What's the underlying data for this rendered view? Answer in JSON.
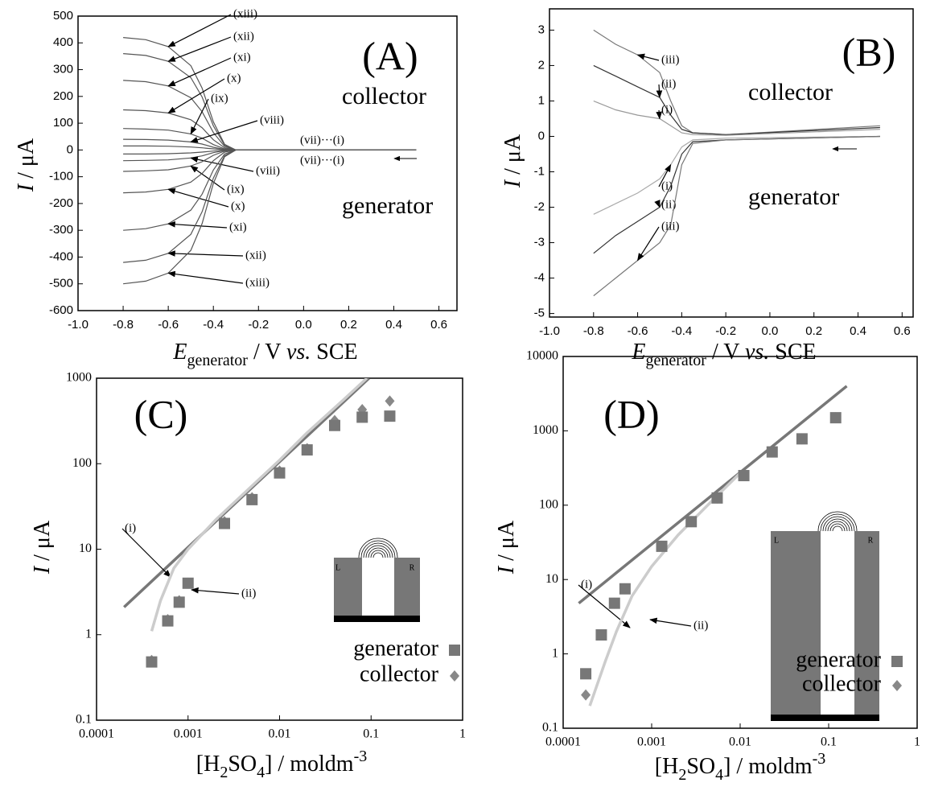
{
  "chart_data": [
    {
      "type": "line",
      "letter": "(A)",
      "xlim": [
        -1.0,
        0.68
      ],
      "ylim": [
        -600,
        500
      ],
      "xticks": [
        {
          "value": -1,
          "label": "-1.0"
        },
        -0.8,
        -0.6,
        -0.4,
        -0.2,
        {
          "value": 0,
          "label": "0.0"
        },
        0.2,
        0.4,
        0.6
      ],
      "yticks": [
        -600,
        -500,
        -400,
        -300,
        -200,
        -100,
        0,
        100,
        200,
        300,
        400,
        500
      ],
      "x_label": [
        "E",
        "generator",
        " / V ",
        "vs.",
        " SCE"
      ],
      "y_label": [
        "I",
        " / μA"
      ],
      "annotations": [
        "collector",
        "generator"
      ],
      "x": [
        0.5,
        -0.3,
        -0.35,
        -0.4,
        -0.45,
        -0.5,
        -0.6,
        -0.7,
        -0.8
      ],
      "series": [
        {
          "name": "(xiii)",
          "color": "#555",
          "values": [
            0,
            0,
            21,
            105,
            231,
            315,
            386,
            412,
            420
          ]
        },
        {
          "name": "(xii)",
          "color": "#555",
          "values": [
            0,
            0,
            18,
            90,
            198,
            270,
            331,
            353,
            360
          ]
        },
        {
          "name": "(xi)",
          "color": "#555",
          "values": [
            0,
            0,
            13,
            65,
            143,
            195,
            239,
            255,
            260
          ]
        },
        {
          "name": "(x)",
          "color": "#555",
          "values": [
            0,
            0,
            8,
            38,
            83,
            113,
            138,
            147,
            150
          ]
        },
        {
          "name": "(ix)",
          "color": "#555",
          "values": [
            0,
            0,
            4,
            20,
            44,
            60,
            74,
            78,
            80
          ]
        },
        {
          "name": "(viii)",
          "color": "#555",
          "values": [
            0,
            0,
            2,
            10,
            22,
            30,
            37,
            39,
            40
          ]
        },
        {
          "name": "(vii)···(i)",
          "color": "#555",
          "values": [
            0,
            0,
            1,
            4,
            8,
            11,
            14,
            15,
            15
          ]
        },
        {
          "name": "(vii)···(i)",
          "color": "#555",
          "values": [
            0,
            0,
            -1,
            -4,
            -8,
            -11,
            -14,
            -15,
            -15
          ]
        },
        {
          "name": "(viii)",
          "color": "#555",
          "values": [
            0,
            0,
            -2,
            -10,
            -22,
            -30,
            -37,
            -39,
            -40
          ]
        },
        {
          "name": "(ix)",
          "color": "#555",
          "values": [
            0,
            0,
            -4,
            -20,
            -44,
            -60,
            -74,
            -78,
            -80
          ]
        },
        {
          "name": "(x)",
          "color": "#555",
          "values": [
            0,
            0,
            -8,
            -40,
            -88,
            -120,
            -147,
            -157,
            -160
          ]
        },
        {
          "name": "(xi)",
          "color": "#555",
          "values": [
            0,
            0,
            -15,
            -75,
            -165,
            -225,
            -276,
            -294,
            -300
          ]
        },
        {
          "name": "(xii)",
          "color": "#555",
          "values": [
            0,
            0,
            -21,
            -105,
            -231,
            -315,
            -386,
            -412,
            -420
          ]
        },
        {
          "name": "(xiii)",
          "color": "#555",
          "values": [
            0,
            0,
            -25,
            -125,
            -275,
            -375,
            -460,
            -490,
            -500
          ]
        }
      ]
    },
    {
      "type": "line",
      "letter": "(B)",
      "xlim": [
        -1.0,
        0.65
      ],
      "ylim": [
        -5.1,
        3.6
      ],
      "xticks": [
        {
          "value": -1,
          "label": "-1.0"
        },
        -0.8,
        -0.6,
        -0.4,
        -0.2,
        {
          "value": 0,
          "label": "0.0"
        },
        0.2,
        0.4,
        0.6
      ],
      "yticks": [
        -5,
        -4,
        -3,
        -2,
        -1,
        0,
        1,
        2,
        3
      ],
      "x_label": [
        "E",
        "generator",
        " / V ",
        "vs.",
        " SCE"
      ],
      "y_label": [
        "I",
        " / μA"
      ],
      "annotations": [
        "collector",
        "generator"
      ],
      "x": [
        0.5,
        -0.2,
        -0.35,
        -0.4,
        -0.45,
        -0.5,
        -0.6,
        -0.7,
        -0.8
      ],
      "series": [
        {
          "name": "(iii)",
          "color": "#777",
          "values": [
            0.3,
            0.05,
            0.1,
            0.3,
            1.0,
            1.8,
            2.3,
            2.6,
            3.0
          ]
        },
        {
          "name": "(ii)",
          "color": "#333",
          "values": [
            0.25,
            0.05,
            0.1,
            0.2,
            0.6,
            1.1,
            1.4,
            1.7,
            2.0
          ]
        },
        {
          "name": "(i)",
          "color": "#999",
          "values": [
            0.2,
            0.03,
            0.05,
            0.1,
            0.3,
            0.5,
            0.6,
            0.75,
            1.0
          ]
        },
        {
          "name": "(i)",
          "color": "#aaa",
          "values": [
            0,
            -0.05,
            -0.1,
            -0.3,
            -0.8,
            -1.2,
            -1.6,
            -1.9,
            -2.2
          ]
        },
        {
          "name": "(ii)",
          "color": "#333",
          "values": [
            0,
            -0.1,
            -0.15,
            -0.5,
            -1.4,
            -2.0,
            -2.4,
            -2.8,
            -3.3
          ]
        },
        {
          "name": "(iii)",
          "color": "#777",
          "values": [
            0,
            -0.1,
            -0.2,
            -0.8,
            -2.5,
            -3.0,
            -3.5,
            -4.0,
            -4.5
          ]
        }
      ]
    },
    {
      "type": "scatter",
      "letter": "(C)",
      "xscale": "log",
      "yscale": "log",
      "xlim": [
        0.0001,
        1
      ],
      "ylim": [
        0.1,
        1000
      ],
      "xticks": [
        0.0001,
        0.001,
        0.01,
        0.1,
        1
      ],
      "yticks": [
        0.1,
        1,
        10,
        100,
        1000
      ],
      "x_label": [
        "[H",
        "2",
        "SO",
        "4",
        "] / moldm",
        "-3"
      ],
      "y_label": [
        "I",
        " / μA"
      ],
      "inset": [
        "L",
        "R"
      ],
      "series": [
        {
          "name": "generator",
          "marker": "square",
          "color": "#777",
          "x": [
            0.0004,
            0.0006,
            0.0008,
            0.001,
            0.0025,
            0.005,
            0.01,
            0.02,
            0.04,
            0.08,
            0.16
          ],
          "values": [
            0.48,
            1.45,
            2.4,
            4,
            20,
            38,
            78,
            145,
            280,
            350,
            360
          ]
        },
        {
          "name": "collector",
          "marker": "diamond",
          "color": "#888",
          "x": [
            0.0004,
            0.0006,
            0.0008,
            0.001,
            0.0025,
            0.005,
            0.01,
            0.02,
            0.04,
            0.08,
            0.16
          ],
          "values": [
            0.5,
            1.5,
            2.5,
            4,
            21,
            40,
            82,
            150,
            320,
            430,
            540
          ]
        },
        {
          "name": "(i)",
          "color": "#777",
          "x": [
            0.0002,
            0.095
          ],
          "values": [
            2.1,
            1000
          ]
        },
        {
          "name": "(ii)",
          "color": "#ccc",
          "x": [
            0.0004,
            0.0005,
            0.0007,
            0.001,
            0.002,
            0.005,
            0.01,
            0.02,
            0.05,
            0.09
          ],
          "values": [
            1.1,
            2.5,
            6,
            10,
            22,
            55,
            110,
            230,
            560,
            1000
          ]
        }
      ]
    },
    {
      "type": "scatter",
      "letter": "(D)",
      "xscale": "log",
      "yscale": "log",
      "xlim": [
        0.0001,
        1
      ],
      "ylim": [
        0.1,
        10000
      ],
      "xticks": [
        0.0001,
        0.001,
        0.01,
        0.1,
        1
      ],
      "yticks": [
        0.1,
        1,
        10,
        100,
        1000,
        10000
      ],
      "x_label": [
        "[H",
        "2",
        "SO",
        "4",
        "]  / moldm",
        "-3"
      ],
      "y_label": [
        "I",
        " / μA"
      ],
      "inset": [
        "L",
        "R"
      ],
      "series": [
        {
          "name": "generator",
          "marker": "square",
          "color": "#777",
          "x": [
            0.00018,
            0.00027,
            0.00038,
            0.0005,
            0.0013,
            0.0028,
            0.0055,
            0.011,
            0.023,
            0.05,
            0.12
          ],
          "values": [
            0.54,
            1.8,
            4.8,
            7.5,
            28,
            60,
            125,
            250,
            520,
            780,
            1500
          ]
        },
        {
          "name": "collector",
          "marker": "diamond",
          "color": "#888",
          "x": [
            0.00018,
            0.00027,
            0.00038,
            0.0005,
            0.0013,
            0.0028,
            0.0055,
            0.011,
            0.023,
            0.05,
            0.12
          ],
          "values": [
            0.28,
            1.8,
            4.8,
            7.5,
            28,
            60,
            125,
            250,
            520,
            780,
            1500
          ]
        },
        {
          "name": "(i)",
          "color": "#777",
          "x": [
            0.00015,
            0.16
          ],
          "values": [
            4.8,
            4000
          ]
        },
        {
          "name": "(ii)",
          "color": "#ccc",
          "x": [
            0.0002,
            0.0003,
            0.0004,
            0.0006,
            0.001,
            0.002,
            0.005,
            0.01
          ],
          "values": [
            0.2,
            0.8,
            2,
            6,
            15,
            40,
            120,
            270
          ]
        }
      ]
    }
  ]
}
